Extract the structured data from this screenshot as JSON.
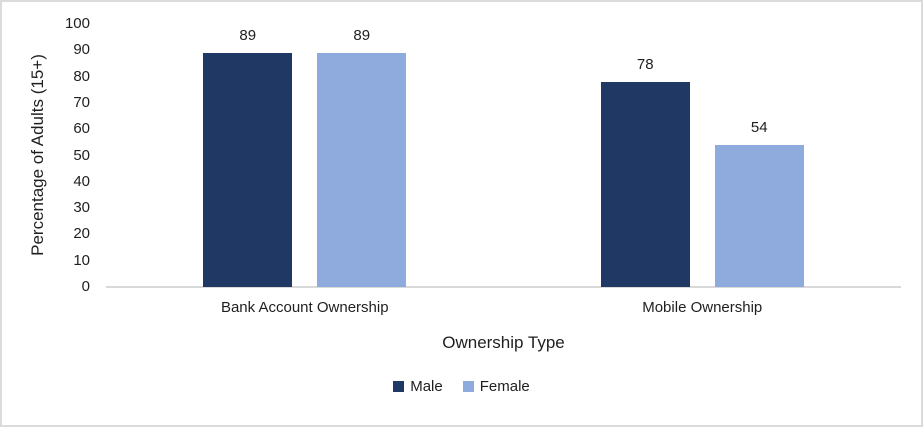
{
  "chart_data": {
    "type": "bar",
    "title": "",
    "categories": [
      "Bank Account Ownership",
      "Mobile Ownership"
    ],
    "series": [
      {
        "name": "Male",
        "color": "#1F3864",
        "values": [
          89,
          78
        ]
      },
      {
        "name": "Female",
        "color": "#8FAADC",
        "values": [
          89,
          54
        ]
      }
    ],
    "xlabel": "Ownership Type",
    "ylabel": "Percentage of Adults (15+)",
    "ylim": [
      0,
      100
    ],
    "ytick_step": 10,
    "yticks": [
      "0",
      "10",
      "20",
      "30",
      "40",
      "50",
      "60",
      "70",
      "80",
      "90",
      "100"
    ],
    "grid": false,
    "legend_position": "bottom",
    "data_labels": true
  },
  "colors": {
    "axis_line": "#D9D9D9",
    "chart_border": "#DBDBDB",
    "background": "#FFFFFF",
    "text": "#1f1f1f"
  }
}
